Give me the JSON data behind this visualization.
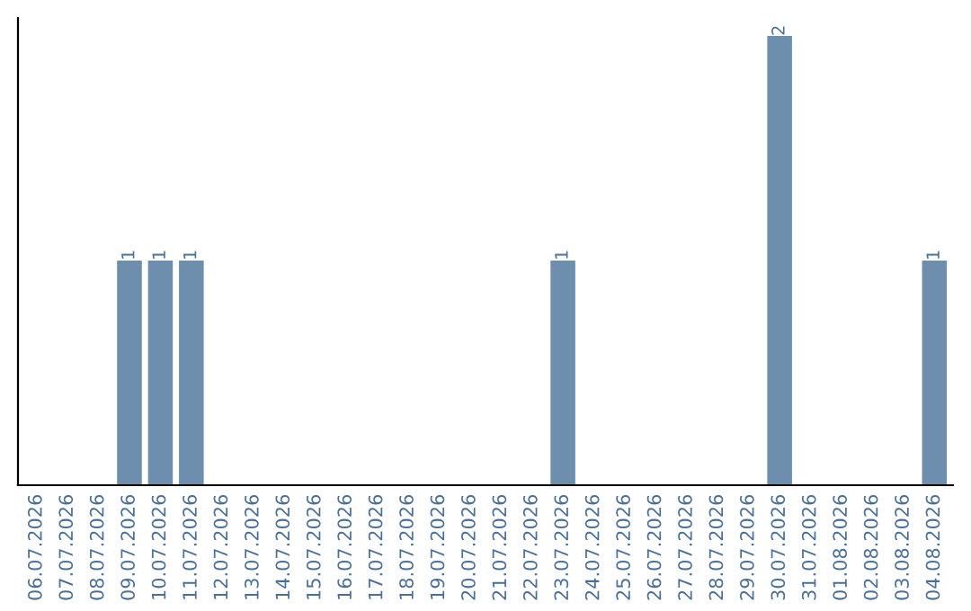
{
  "chart_data": {
    "type": "bar",
    "categories": [
      "06.07.2026",
      "07.07.2026",
      "08.07.2026",
      "09.07.2026",
      "10.07.2026",
      "11.07.2026",
      "12.07.2026",
      "13.07.2026",
      "14.07.2026",
      "15.07.2026",
      "16.07.2026",
      "17.07.2026",
      "18.07.2026",
      "19.07.2026",
      "20.07.2026",
      "21.07.2026",
      "22.07.2026",
      "23.07.2026",
      "24.07.2026",
      "25.07.2026",
      "26.07.2026",
      "27.07.2026",
      "28.07.2026",
      "29.07.2026",
      "30.07.2026",
      "31.07.2026",
      "01.08.2026",
      "02.08.2026",
      "03.08.2026",
      "04.08.2026"
    ],
    "values": [
      0,
      0,
      0,
      1,
      1,
      1,
      0,
      0,
      0,
      0,
      0,
      0,
      0,
      0,
      0,
      0,
      0,
      1,
      0,
      0,
      0,
      0,
      0,
      0,
      2,
      0,
      0,
      0,
      0,
      1
    ],
    "value_labels": [
      null,
      null,
      null,
      "1",
      "1",
      "1",
      null,
      null,
      null,
      null,
      null,
      null,
      null,
      null,
      null,
      null,
      null,
      "1",
      null,
      null,
      null,
      null,
      null,
      null,
      "2",
      null,
      null,
      null,
      null,
      "1"
    ],
    "color": "#6d8eac",
    "tick_labels": "x",
    "grid": false,
    "legend": false
  }
}
